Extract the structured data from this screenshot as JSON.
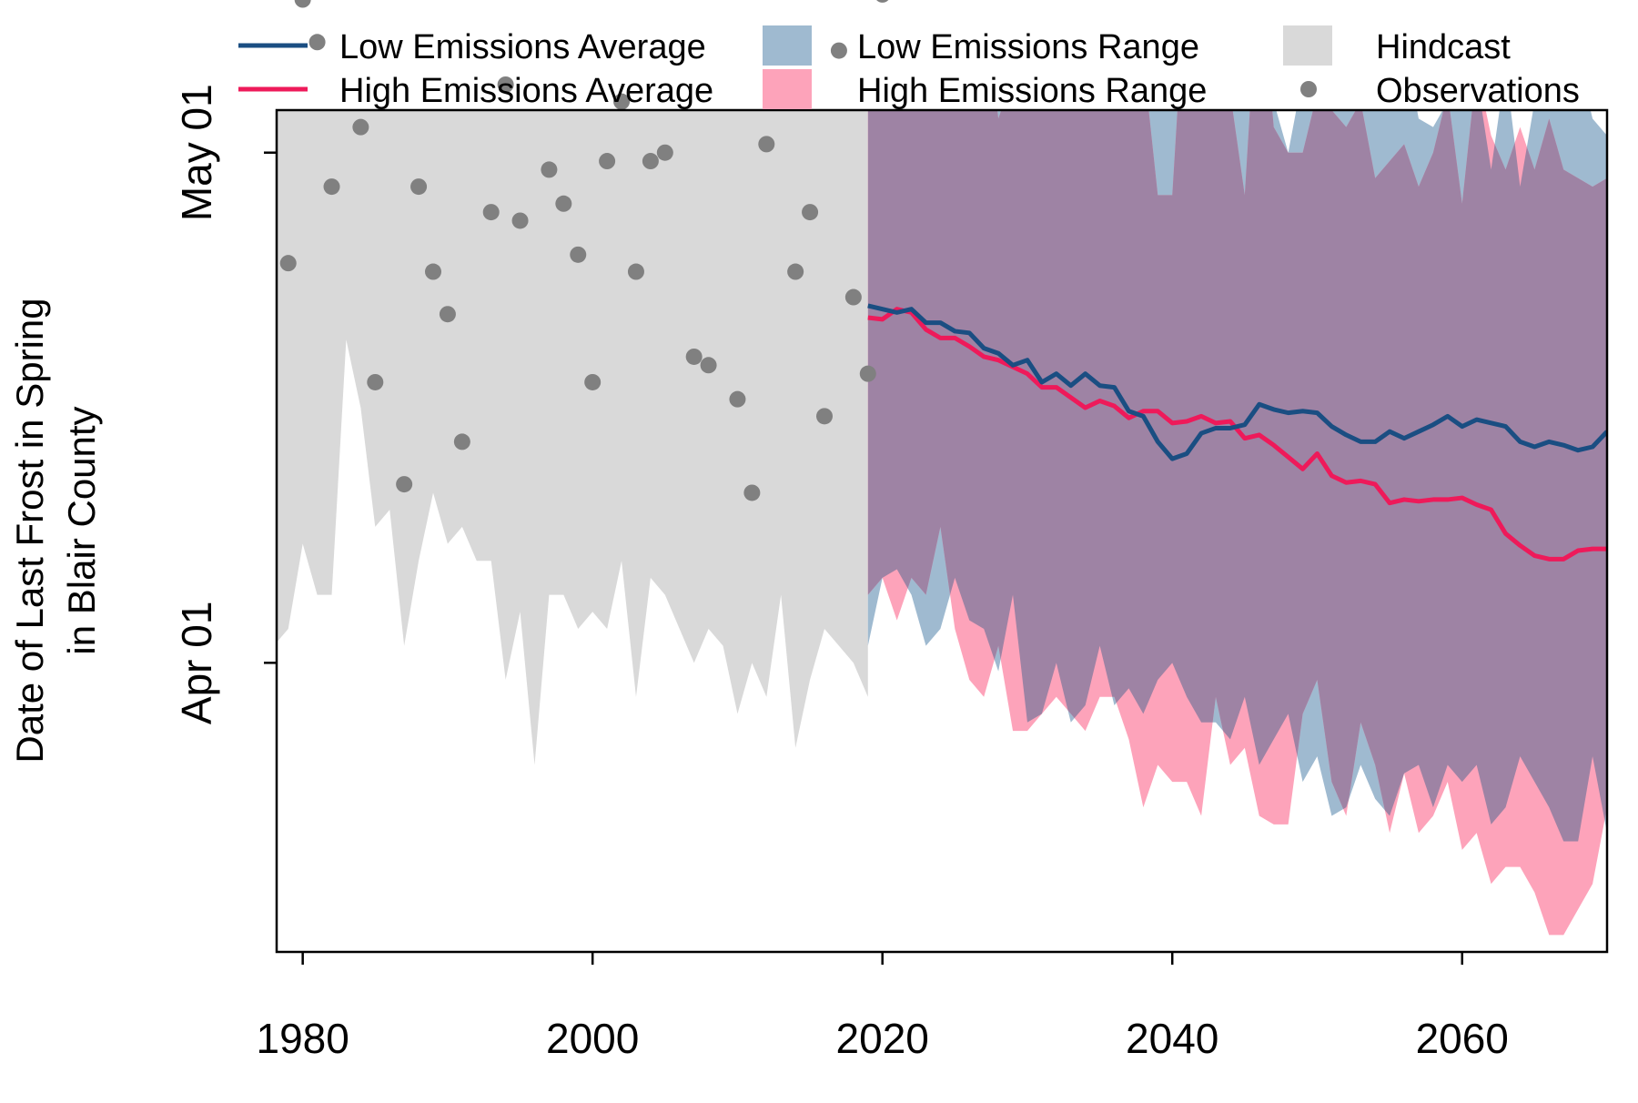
{
  "chart_data": {
    "type": "line",
    "ylabel": [
      "Date of Last Frost in Spring",
      "in Blair County"
    ],
    "xlim": [
      1978.2,
      2070
    ],
    "ylim_day": [
      74,
      123.5
    ],
    "x_ticks": [
      1980,
      2000,
      2020,
      2040,
      2060
    ],
    "y_ticks": [
      {
        "label": "Apr 01",
        "day": 91
      },
      {
        "label": "May 01",
        "day": 121
      }
    ],
    "legend": {
      "placement": "top-outside",
      "items": [
        {
          "label": "Low Emissions Average",
          "kind": "line",
          "color": "#1a4e82"
        },
        {
          "label": "High Emissions Average",
          "kind": "line",
          "color": "#ee1a5a"
        },
        {
          "label": "Low Emissions Range",
          "kind": "box",
          "color": "#9fbad0"
        },
        {
          "label": "High Emissions Range",
          "kind": "box",
          "color": "#fda3ba"
        },
        {
          "label": "Hindcast",
          "kind": "box",
          "color": "#d9d9d9"
        },
        {
          "label": "Observations",
          "kind": "dot",
          "color": "#808080"
        }
      ]
    },
    "colors": {
      "hindcast": "#d9d9d9",
      "low_range": "#9fbad0",
      "high_range": "#fda3ba",
      "overlap": "#9e83a4",
      "low_avg": "#1a4e82",
      "high_avg": "#ee1a5a",
      "obs": "#808080"
    },
    "hindcast": {
      "x": [
        1978,
        1979,
        1980,
        1981,
        1982,
        1983,
        1984,
        1985,
        1986,
        1987,
        1988,
        1989,
        1990,
        1991,
        1992,
        1993,
        1994,
        1995,
        1996,
        1997,
        1998,
        1999,
        2000,
        2001,
        2002,
        2003,
        2004,
        2005,
        2006,
        2007,
        2008,
        2009,
        2010,
        2011,
        2012,
        2013,
        2014,
        2015,
        2016,
        2017,
        2018,
        2019
      ],
      "upper": [
        125,
        124,
        137,
        129,
        127,
        135,
        136,
        137,
        134,
        130,
        133,
        131,
        130,
        132,
        136,
        137,
        127,
        133,
        129,
        128,
        130,
        132,
        129,
        127,
        130,
        128,
        132,
        131,
        127,
        130,
        129,
        130,
        127,
        128,
        132,
        134,
        125,
        130,
        130,
        131,
        129,
        130
      ],
      "lower": [
        92,
        93,
        98,
        95,
        95,
        110,
        106,
        99,
        100,
        92,
        97,
        101,
        98,
        99,
        97,
        97,
        90,
        94,
        85,
        95,
        95,
        93,
        94,
        93,
        97,
        89,
        96,
        95,
        93,
        91,
        93,
        92,
        88,
        91,
        89,
        95,
        86,
        90,
        93,
        92,
        91,
        89
      ]
    },
    "observations": {
      "x": [
        1979,
        1980,
        1981,
        1982,
        1983,
        1984,
        1985,
        1986,
        1987,
        1988,
        1989,
        1990,
        1991,
        1992,
        1993,
        1994,
        1995,
        1996,
        1997,
        1998,
        1999,
        2000,
        2001,
        2002,
        2003,
        2004,
        2005,
        2006,
        2007,
        2008,
        2009,
        2010,
        2011,
        2012,
        2013,
        2014,
        2015,
        2016,
        2017,
        2018,
        2019,
        2020
      ],
      "day": [
        114.5,
        130,
        127.5,
        119,
        138.5,
        122.5,
        107.5,
        134,
        101.5,
        119,
        114,
        111.5,
        104,
        137,
        117.5,
        125,
        117,
        135.5,
        120,
        118,
        115,
        107.5,
        120.5,
        124,
        114,
        120.5,
        121,
        138.5,
        109,
        108.5,
        138,
        106.5,
        101,
        121.5,
        138.7,
        114,
        117.5,
        105.5,
        127,
        112.5,
        108,
        130.3
      ]
    },
    "low_range": {
      "x": [
        2019,
        2020,
        2021,
        2022,
        2023,
        2024,
        2025,
        2026,
        2027,
        2028,
        2029,
        2030,
        2031,
        2032,
        2033,
        2034,
        2035,
        2036,
        2037,
        2038,
        2039,
        2040,
        2041,
        2042,
        2043,
        2044,
        2045,
        2046,
        2047,
        2048,
        2049,
        2050,
        2051,
        2052,
        2053,
        2054,
        2055,
        2056,
        2057,
        2058,
        2059,
        2060,
        2061,
        2062,
        2063,
        2064,
        2065,
        2066,
        2067,
        2068,
        2069,
        2070
      ],
      "upper": [
        133,
        134.5,
        124.5,
        130.5,
        127.5,
        127.5,
        126,
        125.5,
        129,
        128,
        130,
        127,
        124,
        128.5,
        126,
        130,
        126.5,
        125,
        130.5,
        124.5,
        130,
        125,
        127.5,
        124,
        127,
        125,
        123.5,
        132,
        124,
        121,
        125.5,
        127.5,
        124,
        125,
        129,
        131,
        125,
        127.5,
        123,
        122.5,
        124,
        126,
        125.5,
        120,
        126,
        119,
        124,
        124.5,
        125.5,
        126.5,
        123,
        122
      ],
      "lower": [
        92,
        96,
        96.5,
        95,
        92,
        93,
        96,
        93.5,
        93,
        90.5,
        95,
        87.5,
        88,
        91,
        87.5,
        88.5,
        92,
        88.5,
        89.5,
        88,
        90,
        91,
        89,
        87.5,
        87.5,
        86.5,
        89,
        85,
        86.5,
        88,
        84,
        85.5,
        82,
        82.5,
        85,
        83,
        82,
        84.5,
        85,
        82.5,
        85,
        84,
        85,
        81.5,
        82.5,
        85.5,
        84,
        82.5,
        80.5,
        80.5,
        85.5,
        81
      ]
    },
    "high_range": {
      "x": [
        2019,
        2020,
        2021,
        2022,
        2023,
        2024,
        2025,
        2026,
        2027,
        2028,
        2029,
        2030,
        2031,
        2032,
        2033,
        2034,
        2035,
        2036,
        2037,
        2038,
        2039,
        2040,
        2041,
        2042,
        2043,
        2044,
        2045,
        2046,
        2047,
        2048,
        2049,
        2050,
        2051,
        2052,
        2053,
        2054,
        2055,
        2056,
        2057,
        2058,
        2059,
        2060,
        2061,
        2062,
        2063,
        2064,
        2065,
        2066,
        2067,
        2068,
        2069,
        2070
      ],
      "upper": [
        127,
        125,
        124.5,
        133.5,
        124.5,
        127,
        125.5,
        126,
        130,
        123,
        125.5,
        129,
        125,
        125.5,
        126,
        126,
        126,
        124.5,
        125,
        126.5,
        118.5,
        118.5,
        132.5,
        129,
        125,
        124.5,
        118.5,
        132.5,
        122.5,
        121,
        121,
        124.5,
        123.5,
        122.5,
        124,
        119.5,
        120.5,
        121.5,
        119,
        121,
        124.5,
        118,
        126,
        122,
        120,
        122.5,
        120,
        123,
        120,
        119.5,
        119,
        119.5
      ],
      "lower": [
        95,
        96,
        93.5,
        96,
        95,
        99,
        93,
        90,
        89,
        92,
        87,
        87,
        88,
        89,
        88,
        87,
        89,
        89,
        86.5,
        82.5,
        85,
        84,
        84,
        82,
        89,
        85,
        86,
        82,
        81.5,
        81.5,
        88,
        90,
        84,
        82,
        87.5,
        85,
        81,
        84.5,
        81,
        82,
        84,
        80,
        81,
        78,
        79,
        79,
        77.5,
        75,
        75,
        76.5,
        78,
        82.5
      ]
    },
    "low_avg": {
      "x": [
        2019,
        2020,
        2021,
        2022,
        2023,
        2024,
        2025,
        2026,
        2027,
        2028,
        2029,
        2030,
        2031,
        2032,
        2033,
        2034,
        2035,
        2036,
        2037,
        2038,
        2039,
        2040,
        2041,
        2042,
        2043,
        2044,
        2045,
        2046,
        2047,
        2048,
        2049,
        2050,
        2051,
        2052,
        2053,
        2054,
        2055,
        2056,
        2057,
        2058,
        2059,
        2060,
        2061,
        2062,
        2063,
        2064,
        2065,
        2066,
        2067,
        2068,
        2069,
        2070
      ],
      "day": [
        112,
        111.8,
        111.6,
        111.8,
        111,
        111,
        110.5,
        110.4,
        109.5,
        109.2,
        108.5,
        108.8,
        107.5,
        108,
        107.3,
        108,
        107.3,
        107.2,
        105.8,
        105.5,
        104,
        103,
        103.3,
        104.5,
        104.8,
        104.8,
        105,
        106.2,
        105.9,
        105.7,
        105.8,
        105.7,
        104.9,
        104.4,
        104,
        104,
        104.6,
        104.2,
        104.6,
        105,
        105.5,
        104.9,
        105.3,
        105.1,
        104.9,
        104,
        103.7,
        104,
        103.8,
        103.5,
        103.7,
        104.6
      ]
    },
    "high_avg": {
      "x": [
        2019,
        2020,
        2021,
        2022,
        2023,
        2024,
        2025,
        2026,
        2027,
        2028,
        2029,
        2030,
        2031,
        2032,
        2033,
        2034,
        2035,
        2036,
        2037,
        2038,
        2039,
        2040,
        2041,
        2042,
        2043,
        2044,
        2045,
        2046,
        2047,
        2048,
        2049,
        2050,
        2051,
        2052,
        2053,
        2054,
        2055,
        2056,
        2057,
        2058,
        2059,
        2060,
        2061,
        2062,
        2063,
        2064,
        2065,
        2066,
        2067,
        2068,
        2069,
        2070
      ],
      "day": [
        111.3,
        111.2,
        111.8,
        111.6,
        110.6,
        110.1,
        110.1,
        109.6,
        109,
        108.8,
        108.4,
        108,
        107.2,
        107.2,
        106.6,
        106,
        106.4,
        106.1,
        105.4,
        105.8,
        105.8,
        105.1,
        105.2,
        105.5,
        105.1,
        105.2,
        104.2,
        104.4,
        103.8,
        103.1,
        102.4,
        103.3,
        102,
        101.6,
        101.7,
        101.5,
        100.4,
        100.6,
        100.5,
        100.6,
        100.6,
        100.7,
        100.3,
        100,
        98.6,
        97.9,
        97.3,
        97.1,
        97.1,
        97.6,
        97.7,
        97.7
      ]
    }
  }
}
